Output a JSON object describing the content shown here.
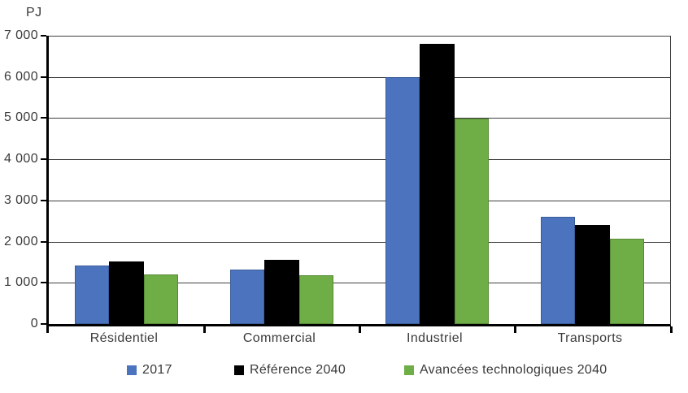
{
  "chart_data": {
    "type": "bar",
    "title": "",
    "unit_label": "PJ",
    "categories": [
      "Résidentiel",
      "Commercial",
      "Industriel",
      "Transports"
    ],
    "series": [
      {
        "name": "2017",
        "color": "#4C74BE",
        "border_color": "#3A5C99",
        "values": [
          1420,
          1320,
          6000,
          2610
        ]
      },
      {
        "name": "Référence 2040",
        "color": "#000000",
        "border_color": "#000000",
        "values": [
          1520,
          1550,
          6800,
          2410
        ]
      },
      {
        "name": "Avancées technologiques 2040",
        "color": "#6FAD47",
        "border_color": "#578A36",
        "values": [
          1200,
          1180,
          4980,
          2070
        ]
      }
    ],
    "ylim": [
      0,
      7000
    ],
    "ytick_step": 1000,
    "ytick_labels": [
      "0",
      "1 000",
      "2 000",
      "3 000",
      "4 000",
      "5 000",
      "6 000",
      "7 000"
    ],
    "xlabel": "",
    "ylabel": "PJ",
    "grid": true,
    "legend_position": "bottom"
  }
}
